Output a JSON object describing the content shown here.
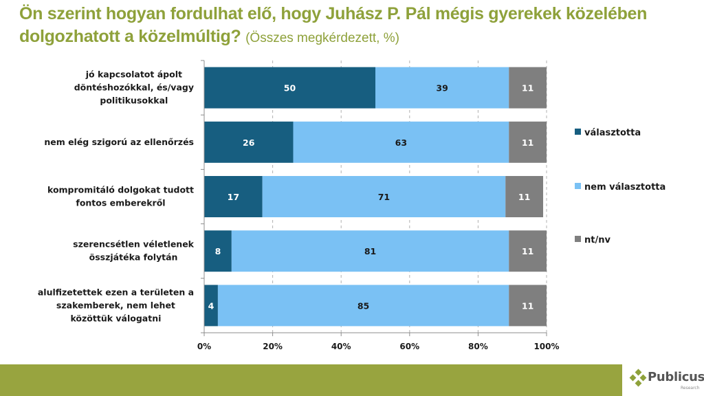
{
  "header": {
    "title": "Ön szerint hogyan fordulhat elő, hogy Juhász P. Pál mégis gyerekek közelében dolgozhatott a közelmúltig?",
    "subtitle": "(Összes megkérdezett, %)",
    "title_color": "#8ea13a"
  },
  "chart_data": {
    "type": "bar",
    "orientation": "horizontal",
    "stacked": "percent",
    "title": "Ön szerint hogyan fordulhat elő, hogy Juhász P. Pál mégis gyerekek közelében dolgozhatott a közelmúltig? (Összes megkérdezett, %)",
    "xlabel": "",
    "ylabel": "",
    "xlim": [
      0,
      100
    ],
    "x_ticks": [
      "0%",
      "20%",
      "40%",
      "60%",
      "80%",
      "100%"
    ],
    "grid": "vertical dashed",
    "legend_position": "right",
    "categories": [
      [
        "jó kapcsolatot ápolt",
        "döntéshozókkal, és/vagy",
        "politikusokkal"
      ],
      [
        "nem elég szigorú az ellenőrzés"
      ],
      [
        "kompromitáló dolgokat tudott",
        "fontos emberekről"
      ],
      [
        "szerencsétlen véletlenek",
        "összjátéka folytán"
      ],
      [
        "alulfizetettek ezen a területen a",
        "szakemberek, nem lehet",
        "közöttük válogatni"
      ]
    ],
    "series": [
      {
        "name": "választotta",
        "color": "#175e80",
        "label_color": "#ffffff",
        "values": [
          50,
          26,
          17,
          8,
          4
        ]
      },
      {
        "name": "nem választotta",
        "color": "#7ac1f4",
        "label_color": "#1a1a1a",
        "values": [
          39,
          63,
          71,
          81,
          85
        ]
      },
      {
        "name": "nt/nv",
        "color": "#7f7f7f",
        "label_color": "#ffffff",
        "values": [
          11,
          11,
          11,
          11,
          11
        ]
      }
    ]
  },
  "footer": {
    "logo_text": "Publicus",
    "logo_subtext": "Research",
    "band_color": "#98a43f"
  }
}
